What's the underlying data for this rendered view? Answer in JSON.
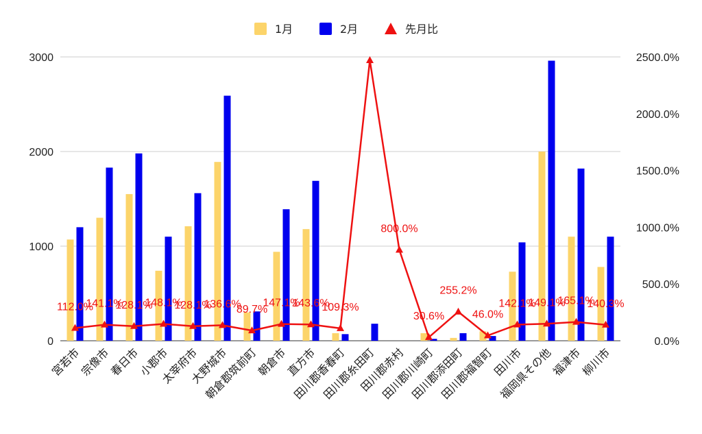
{
  "chart_data": {
    "type": "bar",
    "categories": [
      "宮若市",
      "宗像市",
      "春日市",
      "小郡市",
      "太宰府市",
      "大野城市",
      "朝倉郡筑前町",
      "朝倉市",
      "直方市",
      "田川郡香春町",
      "田川郡糸田町",
      "田川郡赤村",
      "田川郡川崎町",
      "田川郡添田町",
      "田川郡福智町",
      "田川市",
      "福岡県その他",
      "福津市",
      "柳川市"
    ],
    "series": [
      {
        "name": "1月",
        "type": "bar",
        "axis": "left",
        "color": "#fcd46a",
        "values": [
          1070,
          1300,
          1550,
          740,
          1210,
          1890,
          300,
          940,
          1180,
          80,
          0,
          0,
          80,
          30,
          100,
          730,
          2000,
          1100,
          780
        ]
      },
      {
        "name": "2月",
        "type": "bar",
        "axis": "left",
        "color": "#0000ee",
        "values": [
          1200,
          1830,
          1980,
          1100,
          1560,
          2590,
          310,
          1390,
          1690,
          70,
          180,
          0,
          20,
          80,
          50,
          1040,
          2960,
          1820,
          1100
        ]
      },
      {
        "name": "先月比",
        "type": "line",
        "axis": "right",
        "color": "#ee1111",
        "values": [
          112.0,
          141.1,
          128.1,
          148.1,
          128.1,
          136.6,
          89.7,
          147.1,
          143.6,
          109.3,
          2470.0,
          800.0,
          30.6,
          255.2,
          46.0,
          142.1,
          149.1,
          165.1,
          140.3
        ],
        "labels": [
          "112.0%",
          "141.1%",
          "128.1%",
          "148.1%",
          "128.1%",
          "136.6%",
          "89.7%",
          "147.1%",
          "143.6%",
          "109.3%",
          "",
          "800.0%",
          "30.6%",
          "255.2%",
          "46.0%",
          "142.1%",
          "149.1%",
          "165.1%",
          "140.3%"
        ]
      }
    ],
    "y_left": {
      "ylim": [
        0,
        3000
      ],
      "ticks": [
        "0",
        "1000",
        "2000",
        "3000"
      ]
    },
    "y_right": {
      "ylim": [
        0,
        2500
      ],
      "ticks": [
        "0.0%",
        "500.0%",
        "1000.0%",
        "1500.0%",
        "2000.0%",
        "2500.0%"
      ]
    },
    "legend": {
      "placement": "top-center",
      "items": [
        {
          "label": "1月",
          "shape": "square",
          "color": "#fcd46a"
        },
        {
          "label": "2月",
          "shape": "square",
          "color": "#0000ee"
        },
        {
          "label": "先月比",
          "shape": "triangle",
          "color": "#ee1111"
        }
      ]
    },
    "grid": true,
    "title": "",
    "xlabel": "",
    "ylabel": ""
  }
}
